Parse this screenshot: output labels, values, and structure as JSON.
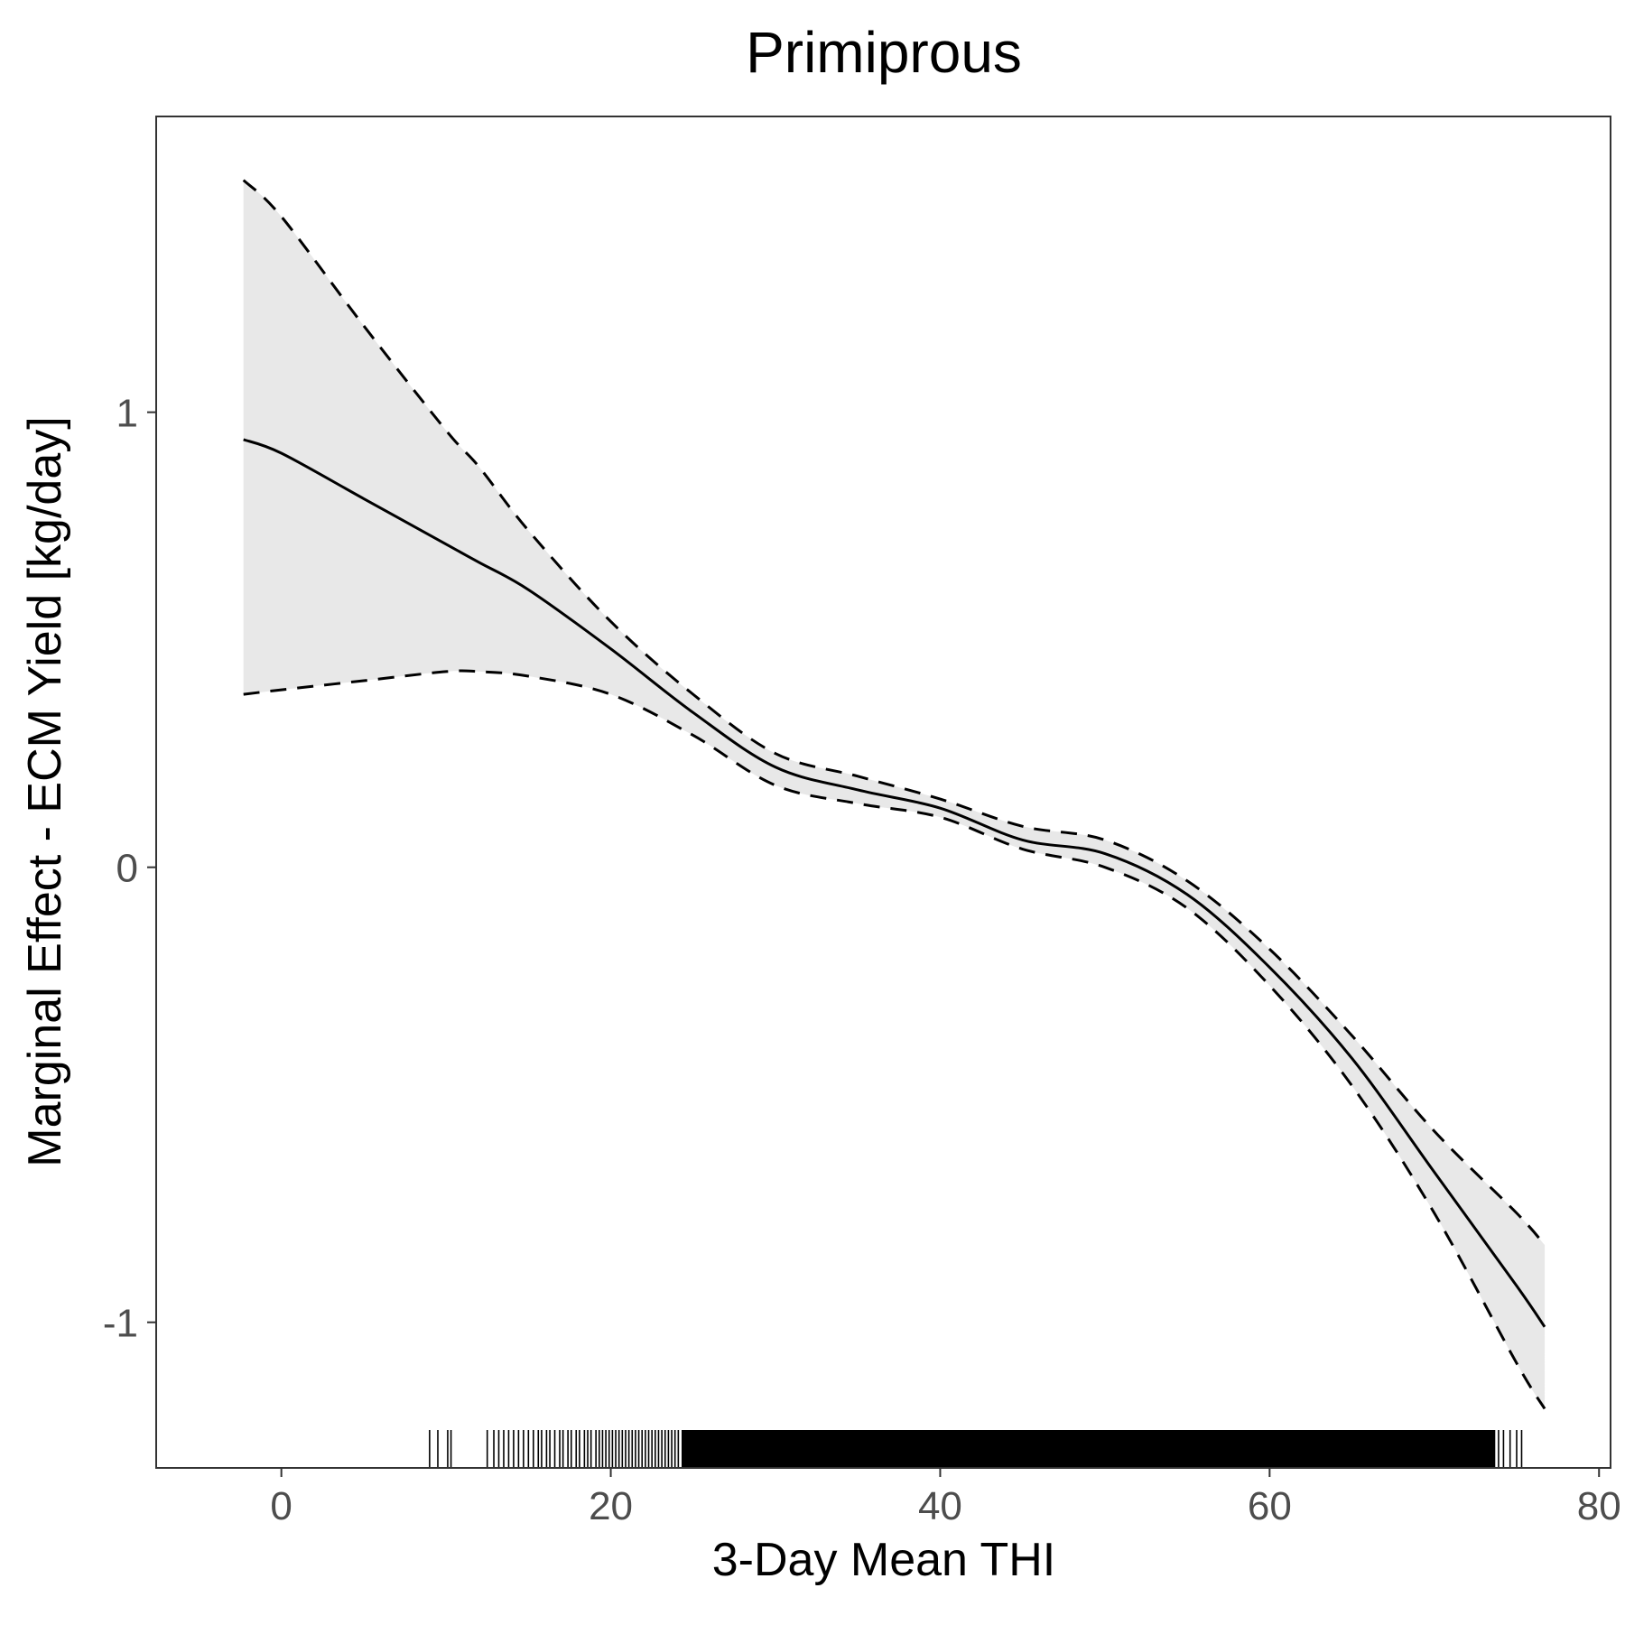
{
  "chart_data": {
    "type": "line",
    "title": "Primiprous",
    "xlabel": "3-Day Mean THI",
    "ylabel": "Marginal Effect - ECM Yield [kg/day]",
    "xlim": [
      -7.6,
      80.7
    ],
    "ylim": [
      -1.32,
      1.65
    ],
    "x_ticks": [
      0,
      20,
      40,
      60,
      80
    ],
    "x_tick_labels": [
      "0",
      "20",
      "40",
      "60",
      "80"
    ],
    "y_ticks": [
      1,
      0,
      -1
    ],
    "y_tick_labels": [
      "1",
      "0",
      "-1"
    ],
    "grid": false,
    "legend": "none",
    "x": [
      -2.3,
      0,
      5,
      10,
      12,
      15,
      20,
      25,
      30,
      35,
      40,
      45,
      50,
      55,
      60,
      65,
      70,
      75,
      76.7
    ],
    "series": [
      {
        "role": "estimate",
        "line_style": "solid",
        "values": [
          0.94,
          0.91,
          0.81,
          0.71,
          0.67,
          0.61,
          0.48,
          0.34,
          0.22,
          0.17,
          0.13,
          0.06,
          0.03,
          -0.06,
          -0.22,
          -0.42,
          -0.67,
          -0.92,
          -1.01
        ]
      },
      {
        "role": "upper bound",
        "line_style": "dashed",
        "values": [
          1.51,
          1.43,
          1.19,
          0.96,
          0.88,
          0.74,
          0.54,
          0.38,
          0.25,
          0.2,
          0.15,
          0.09,
          0.06,
          -0.03,
          -0.18,
          -0.37,
          -0.58,
          -0.76,
          -0.83
        ]
      },
      {
        "role": "lower bound",
        "line_style": "dashed",
        "values": [
          0.38,
          0.39,
          0.41,
          0.43,
          0.43,
          0.42,
          0.38,
          0.29,
          0.18,
          0.14,
          0.11,
          0.04,
          0.0,
          -0.09,
          -0.26,
          -0.48,
          -0.76,
          -1.09,
          -1.19
        ]
      }
    ],
    "rug": {
      "x_range": [
        9,
        75.3
      ],
      "dense_range": [
        24.3,
        73.7
      ],
      "x": [
        9.0,
        9.5,
        10.1,
        10.3,
        12.5,
        12.9,
        13.2,
        13.5,
        13.8,
        14.1,
        14.4,
        14.7,
        15.0,
        15.3,
        15.6,
        15.8,
        16.1,
        16.3,
        16.6,
        16.9,
        17.1,
        17.4,
        17.6,
        17.9,
        18.1,
        18.4,
        18.6,
        18.8,
        19.1,
        19.3,
        19.5,
        19.7,
        19.9,
        20.1,
        20.3,
        20.5,
        20.7,
        20.9,
        21.1,
        21.3,
        21.5,
        21.7,
        21.9,
        22.1,
        22.3,
        22.5,
        22.7,
        22.9,
        23.1,
        23.3,
        23.5,
        23.7,
        23.9,
        24.1,
        73.9,
        74.2,
        74.6,
        75.0,
        75.3
      ]
    },
    "colors": {
      "line": "#000000",
      "ribbon": "#e8e8e8",
      "panel_border": "#333333",
      "tick_label": "#4d4d4d"
    }
  }
}
